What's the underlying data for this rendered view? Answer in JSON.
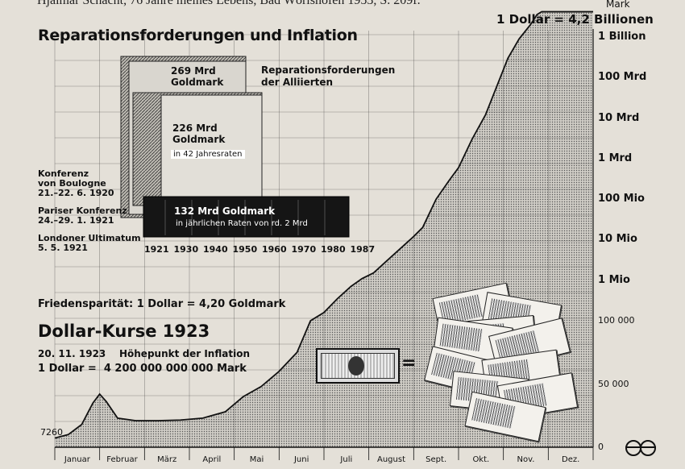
{
  "caption": "Hjalmar Schacht, 76 Jahre meines Lebens, Bad Wörishofen 1953, S. 209f.",
  "top_title": "Reparationsforderungen und Inflation",
  "reparations": {
    "legend_label": "Reparationsforderungen der Alliierten",
    "legend_line1": "Reparationsforderungen",
    "legend_line2": "der Alliierten",
    "blocks": [
      {
        "amount": "269 Mrd",
        "unit": "Goldmark",
        "note": ""
      },
      {
        "amount": "226 Mrd",
        "unit": "Goldmark",
        "note": "in 42 Jahresraten"
      },
      {
        "amount": "132 Mrd Goldmark",
        "unit": "",
        "note": "in jährlichen Raten von rd. 2 Mrd"
      }
    ],
    "events": [
      {
        "line1": "Konferenz",
        "line2": "von Boulogne",
        "line3": "21.–22. 6. 1920"
      },
      {
        "line1": "Pariser Konferenz",
        "line2": "24.–29. 1. 1921",
        "line3": ""
      },
      {
        "line1": "Londoner Ultimatum",
        "line2": "5. 5. 1921",
        "line3": ""
      }
    ],
    "years": [
      "1921",
      "1930",
      "1940",
      "1950",
      "1960",
      "1970",
      "1980",
      "1987"
    ]
  },
  "parity": "Friedensparität: 1 Dollar = 4,20 Goldmark",
  "dollar_title": "Dollar-Kurse 1923",
  "peak_line": "20. 11. 1923    Höhepunkt der Inflation",
  "peak_value": "1 Dollar =  4 200 000 000 000 Mark",
  "top_right_label": "1 Dollar = 4,2 Billionen",
  "unit_label": "Mark",
  "chart_data": {
    "type": "line",
    "title": "Dollar-Kurse 1923",
    "xlabel": "",
    "ylabel": "Mark",
    "x": [
      "Januar",
      "Februar",
      "März",
      "April",
      "Mai",
      "Juni",
      "Juli",
      "August",
      "Sept.",
      "Okt.",
      "Nov.",
      "Dez."
    ],
    "y_linear_ticks": [
      "0",
      "50 000",
      "100 000"
    ],
    "y_log_ticks": [
      "1 Mio",
      "10 Mio",
      "100 Mio",
      "1 Mrd",
      "10 Mrd",
      "100 Mrd",
      "1 Billion"
    ],
    "start_label": "7260",
    "series": [
      {
        "name": "",
        "points": [
          [
            0.0,
            7260
          ],
          [
            0.3,
            10000
          ],
          [
            0.6,
            18000
          ],
          [
            0.85,
            35000
          ],
          [
            1.0,
            42000
          ],
          [
            1.15,
            36000
          ],
          [
            1.4,
            23000
          ],
          [
            1.8,
            21000
          ],
          [
            2.3,
            21000
          ],
          [
            2.8,
            21500
          ],
          [
            3.3,
            23000
          ],
          [
            3.8,
            28000
          ],
          [
            4.2,
            40000
          ],
          [
            4.6,
            48000
          ],
          [
            5.0,
            60000
          ],
          [
            5.4,
            75000
          ],
          [
            5.7,
            100000
          ],
          [
            6.0,
            160000
          ],
          [
            6.3,
            350000
          ],
          [
            6.6,
            700000
          ],
          [
            6.85,
            1100000
          ],
          [
            7.1,
            1500000
          ],
          [
            7.4,
            3000000
          ],
          [
            7.7,
            6000000
          ],
          [
            8.0,
            12000000
          ],
          [
            8.2,
            20000000
          ],
          [
            8.5,
            100000000
          ],
          [
            8.8,
            300000000
          ],
          [
            9.0,
            600000000
          ],
          [
            9.3,
            3000000000
          ],
          [
            9.6,
            12000000000
          ],
          [
            9.85,
            60000000000
          ],
          [
            10.1,
            300000000000
          ],
          [
            10.35,
            900000000000
          ],
          [
            10.6,
            2000000000000
          ],
          [
            10.75,
            3600000000000
          ],
          [
            10.85,
            4200000000000
          ],
          [
            12.0,
            4200000000000
          ]
        ]
      }
    ],
    "grid": true,
    "fill": "area"
  },
  "illustration": {
    "dollar_note": "dollar-bill",
    "equals": "=",
    "notes": "Reichsbanknoten"
  },
  "logo": "verlag-logo"
}
